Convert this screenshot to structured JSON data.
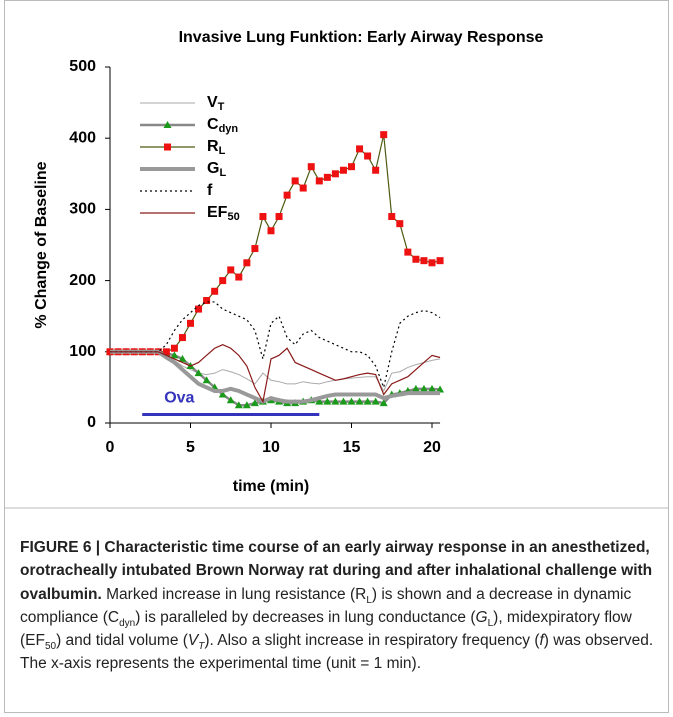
{
  "chart_data": {
    "type": "line",
    "title": "Invasive Lung Funktion: Early Airway Response",
    "xlabel": "time (min)",
    "ylabel": "% Change of Baseline",
    "xlim": [
      0,
      20.5
    ],
    "xticks": [
      0,
      5,
      10,
      15,
      20
    ],
    "ylim": [
      0,
      500
    ],
    "yticks": [
      0,
      100,
      200,
      300,
      400,
      500
    ],
    "x": [
      0,
      0.5,
      1,
      1.5,
      2,
      2.5,
      3,
      3.5,
      4,
      4.5,
      5,
      5.5,
      6,
      6.5,
      7,
      7.5,
      8,
      8.5,
      9,
      9.5,
      10,
      10.5,
      11,
      11.5,
      12,
      12.5,
      13,
      13.5,
      14,
      14.5,
      15,
      15.5,
      16,
      16.5,
      17,
      17.5,
      18,
      18.5,
      19,
      19.5,
      20,
      20.5
    ],
    "series": [
      {
        "name": "V",
        "name_sub": "T",
        "color": "#aaaaaa",
        "width": 1,
        "dash": "none",
        "marker": "none",
        "marker_color": "none",
        "values": [
          100,
          100,
          100,
          100,
          100,
          100,
          100,
          95,
          88,
          80,
          75,
          70,
          68,
          70,
          75,
          72,
          68,
          62,
          55,
          70,
          60,
          58,
          55,
          55,
          58,
          56,
          55,
          58,
          60,
          62,
          63,
          64,
          65,
          65,
          45,
          70,
          72,
          78,
          82,
          85,
          88,
          90
        ]
      },
      {
        "name": "C",
        "name_sub": "dyn",
        "color": "#888888",
        "width": 2.5,
        "dash": "none",
        "marker": "triangle",
        "marker_color": "#1a9a1a",
        "values": [
          100,
          100,
          100,
          100,
          100,
          100,
          100,
          98,
          95,
          90,
          80,
          70,
          60,
          50,
          40,
          32,
          25,
          25,
          28,
          30,
          32,
          30,
          28,
          28,
          30,
          32,
          30,
          30,
          30,
          30,
          30,
          30,
          30,
          30,
          28,
          40,
          42,
          45,
          48,
          48,
          48,
          47
        ]
      },
      {
        "name": "R",
        "name_sub": "L",
        "color": "#4d5a10",
        "width": 1.2,
        "dash": "none",
        "marker": "square",
        "marker_color": "#ee1111",
        "values": [
          100,
          100,
          100,
          100,
          100,
          100,
          100,
          100,
          105,
          120,
          140,
          160,
          172,
          185,
          200,
          215,
          205,
          225,
          245,
          290,
          270,
          290,
          320,
          340,
          330,
          360,
          340,
          345,
          350,
          355,
          360,
          385,
          375,
          355,
          405,
          290,
          280,
          240,
          230,
          228,
          225,
          228
        ]
      },
      {
        "name": "G",
        "name_sub": "L",
        "color": "#999999",
        "width": 4,
        "dash": "none",
        "marker": "none",
        "marker_color": "none",
        "values": [
          100,
          100,
          100,
          100,
          100,
          100,
          100,
          92,
          85,
          75,
          65,
          55,
          50,
          45,
          45,
          48,
          45,
          40,
          35,
          30,
          35,
          32,
          30,
          30,
          30,
          32,
          35,
          38,
          40,
          40,
          40,
          40,
          40,
          40,
          35,
          38,
          40,
          42,
          42,
          42,
          42,
          42
        ]
      },
      {
        "name": "f",
        "name_sub": "",
        "color": "#000000",
        "width": 1.2,
        "dash": "2,3",
        "marker": "none",
        "marker_color": "none",
        "values": [
          100,
          100,
          100,
          100,
          100,
          100,
          100,
          110,
          130,
          145,
          155,
          165,
          170,
          170,
          160,
          155,
          150,
          145,
          130,
          90,
          140,
          150,
          120,
          110,
          125,
          130,
          120,
          115,
          110,
          105,
          100,
          100,
          95,
          80,
          50,
          100,
          140,
          150,
          155,
          158,
          155,
          148
        ]
      },
      {
        "name": "EF",
        "name_sub": "50",
        "color": "#8b1a1a",
        "width": 1.2,
        "dash": "none",
        "marker": "none",
        "marker_color": "none",
        "values": [
          100,
          100,
          100,
          100,
          100,
          100,
          100,
          95,
          90,
          85,
          80,
          85,
          95,
          105,
          110,
          105,
          95,
          80,
          50,
          30,
          90,
          95,
          105,
          85,
          80,
          75,
          70,
          65,
          60,
          62,
          65,
          68,
          70,
          68,
          40,
          55,
          60,
          65,
          75,
          85,
          95,
          92
        ]
      }
    ],
    "annotation": {
      "text": "Ova",
      "x": [
        2,
        13
      ],
      "y": 12,
      "color": "#3333bb"
    },
    "caption": [
      {
        "text": "FIGURE 6 | Characteristic time course of an early airway response in an anesthetized, orotracheally intubated Brown Norway rat during and after inhalational challenge with ovalbumin.",
        "style": "b"
      },
      {
        "text": " Marked increase in lung resistance (R",
        "style": "n"
      },
      {
        "text": "L",
        "style": "sub"
      },
      {
        "text": ") is shown and a decrease in dynamic compliance (C",
        "style": "n"
      },
      {
        "text": "dyn",
        "style": "sub"
      },
      {
        "text": ") is paralleled by decreases in lung conductance (",
        "style": "n"
      },
      {
        "text": "G",
        "style": "i"
      },
      {
        "text": "L",
        "style": "sub"
      },
      {
        "text": "), midexpiratory flow (EF",
        "style": "n"
      },
      {
        "text": "50",
        "style": "sub"
      },
      {
        "text": ") and tidal volume (",
        "style": "n"
      },
      {
        "text": "V",
        "style": "i"
      },
      {
        "text": "T",
        "style": "isub"
      },
      {
        "text": "). Also a slight increase in respiratory frequency (",
        "style": "n"
      },
      {
        "text": "f",
        "style": "i"
      },
      {
        "text": ") was observed. The x-axis represents the experimental time (unit = 1 min).",
        "style": "n"
      }
    ]
  }
}
